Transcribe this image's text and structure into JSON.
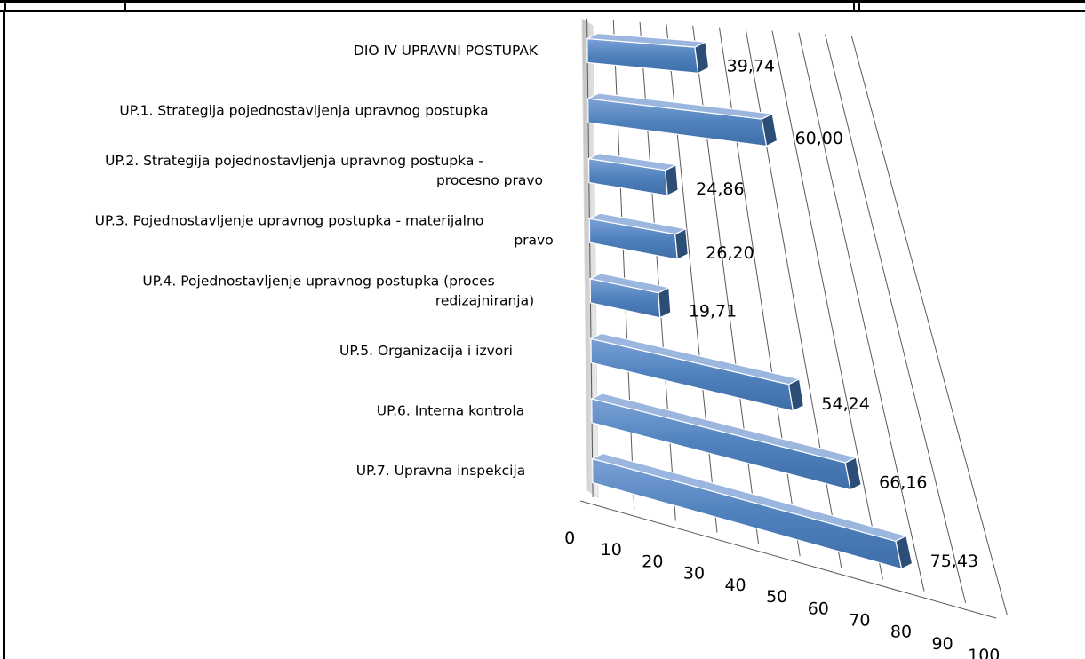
{
  "chart_data": {
    "type": "bar",
    "orientation": "horizontal",
    "style": "3d",
    "categories": [
      "DIO IV UPRAVNI POSTUPAK",
      "UP.1. Strategija pojednostavljenja upravnog postupka",
      "UP.2. Strategija pojednostavljenja upravnog postupka - procesno pravo",
      "UP.3. Pojednostavljenje upravnog postupka - materijalno pravo",
      "UP.4. Pojednostavljenje upravnog postupka (proces redizajniranja)",
      "UP.5. Organizacija i izvori",
      "UP.6. Interna kontrola",
      "UP.7. Upravna inspekcija"
    ],
    "category_lines": [
      [
        "DIO IV UPRAVNI POSTUPAK"
      ],
      [
        "UP.1. Strategija pojednostavljenja upravnog postupka"
      ],
      [
        "UP.2. Strategija pojednostavljenja upravnog postupka -",
        "procesno pravo"
      ],
      [
        "UP.3. Pojednostavljenje upravnog postupka - materijalno",
        "pravo"
      ],
      [
        "UP.4. Pojednostavljenje upravnog postupka (proces",
        "redizajniranja)"
      ],
      [
        "UP.5. Organizacija i izvori"
      ],
      [
        "UP.6. Interna kontrola"
      ],
      [
        "UP.7. Upravna inspekcija"
      ]
    ],
    "values": [
      39.74,
      60.0,
      24.86,
      26.2,
      19.71,
      54.24,
      66.16,
      75.43
    ],
    "value_labels": [
      "39,74",
      "60,00",
      "24,86",
      "26,20",
      "19,71",
      "54,24",
      "66,16",
      "75,43"
    ],
    "xlim": [
      0,
      100
    ],
    "x_ticks": [
      "0",
      "10",
      "20",
      "30",
      "40",
      "50",
      "60",
      "70",
      "80",
      "90",
      "100"
    ],
    "grid": true,
    "bar_color": "#4f81bd",
    "bar_side_color": "#2c4d75"
  }
}
